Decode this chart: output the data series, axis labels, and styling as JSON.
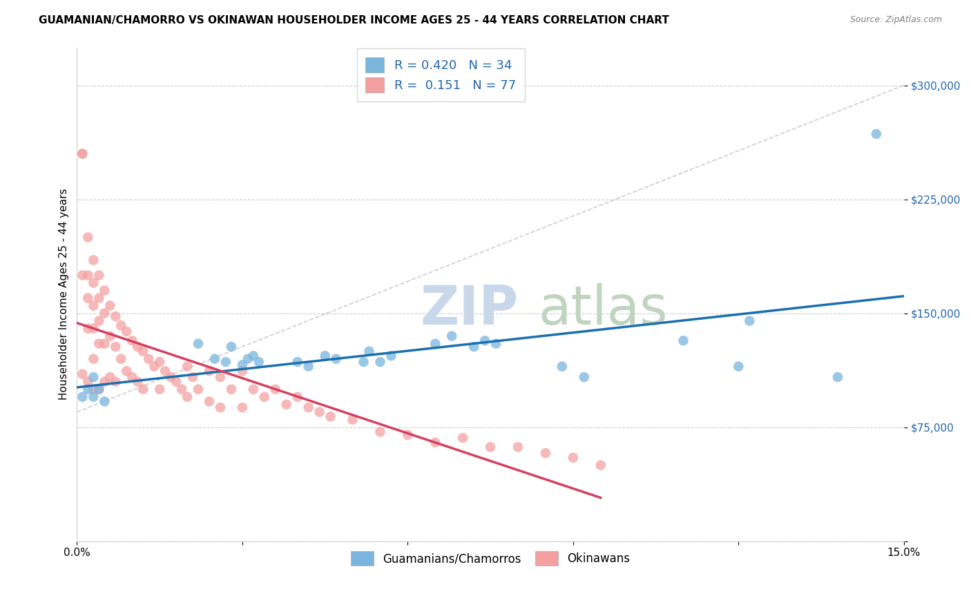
{
  "title": "GUAMANIAN/CHAMORRO VS OKINAWAN HOUSEHOLDER INCOME AGES 25 - 44 YEARS CORRELATION CHART",
  "source": "Source: ZipAtlas.com",
  "ylabel": "Householder Income Ages 25 - 44 years",
  "xlim": [
    0.0,
    0.15
  ],
  "ylim": [
    0,
    325000
  ],
  "yticks": [
    0,
    75000,
    150000,
    225000,
    300000
  ],
  "ytick_labels": [
    "",
    "$75,000",
    "$150,000",
    "$225,000",
    "$300,000"
  ],
  "xticks": [
    0.0,
    0.03,
    0.06,
    0.09,
    0.12,
    0.15
  ],
  "xtick_labels": [
    "0.0%",
    "",
    "",
    "",
    "",
    "15.0%"
  ],
  "blue_R": 0.42,
  "blue_N": 34,
  "pink_R": 0.151,
  "pink_N": 77,
  "blue_color": "#7ab5de",
  "pink_color": "#f4a0a0",
  "blue_line_color": "#1a6faf",
  "pink_line_color": "#d44060",
  "diagonal_color": "#c0c0c0",
  "blue_scatter_x": [
    0.001,
    0.002,
    0.003,
    0.003,
    0.004,
    0.005,
    0.022,
    0.025,
    0.027,
    0.028,
    0.03,
    0.031,
    0.032,
    0.033,
    0.04,
    0.042,
    0.045,
    0.047,
    0.052,
    0.053,
    0.055,
    0.057,
    0.065,
    0.068,
    0.072,
    0.074,
    0.076,
    0.088,
    0.092,
    0.11,
    0.12,
    0.122,
    0.138,
    0.145
  ],
  "blue_scatter_y": [
    95000,
    100000,
    108000,
    95000,
    100000,
    92000,
    130000,
    120000,
    118000,
    128000,
    116000,
    120000,
    122000,
    118000,
    118000,
    115000,
    122000,
    120000,
    118000,
    125000,
    118000,
    122000,
    130000,
    135000,
    128000,
    132000,
    130000,
    115000,
    108000,
    132000,
    115000,
    145000,
    108000,
    268000
  ],
  "pink_scatter_x": [
    0.001,
    0.001,
    0.001,
    0.001,
    0.002,
    0.002,
    0.002,
    0.002,
    0.002,
    0.003,
    0.003,
    0.003,
    0.003,
    0.003,
    0.003,
    0.004,
    0.004,
    0.004,
    0.004,
    0.004,
    0.005,
    0.005,
    0.005,
    0.005,
    0.006,
    0.006,
    0.006,
    0.007,
    0.007,
    0.007,
    0.008,
    0.008,
    0.009,
    0.009,
    0.01,
    0.01,
    0.011,
    0.011,
    0.012,
    0.012,
    0.013,
    0.014,
    0.015,
    0.015,
    0.016,
    0.017,
    0.018,
    0.019,
    0.02,
    0.02,
    0.021,
    0.022,
    0.024,
    0.024,
    0.026,
    0.026,
    0.028,
    0.03,
    0.03,
    0.032,
    0.034,
    0.036,
    0.038,
    0.04,
    0.042,
    0.044,
    0.046,
    0.05,
    0.055,
    0.06,
    0.065,
    0.07,
    0.075,
    0.08,
    0.085,
    0.09,
    0.095
  ],
  "pink_scatter_y": [
    255000,
    255000,
    175000,
    110000,
    200000,
    175000,
    160000,
    140000,
    105000,
    185000,
    170000,
    155000,
    140000,
    120000,
    100000,
    175000,
    160000,
    145000,
    130000,
    100000,
    165000,
    150000,
    130000,
    105000,
    155000,
    135000,
    108000,
    148000,
    128000,
    105000,
    142000,
    120000,
    138000,
    112000,
    132000,
    108000,
    128000,
    105000,
    125000,
    100000,
    120000,
    115000,
    118000,
    100000,
    112000,
    108000,
    105000,
    100000,
    115000,
    95000,
    108000,
    100000,
    112000,
    92000,
    108000,
    88000,
    100000,
    112000,
    88000,
    100000,
    95000,
    100000,
    90000,
    95000,
    88000,
    85000,
    82000,
    80000,
    72000,
    70000,
    65000,
    68000,
    62000,
    62000,
    58000,
    55000,
    50000
  ]
}
